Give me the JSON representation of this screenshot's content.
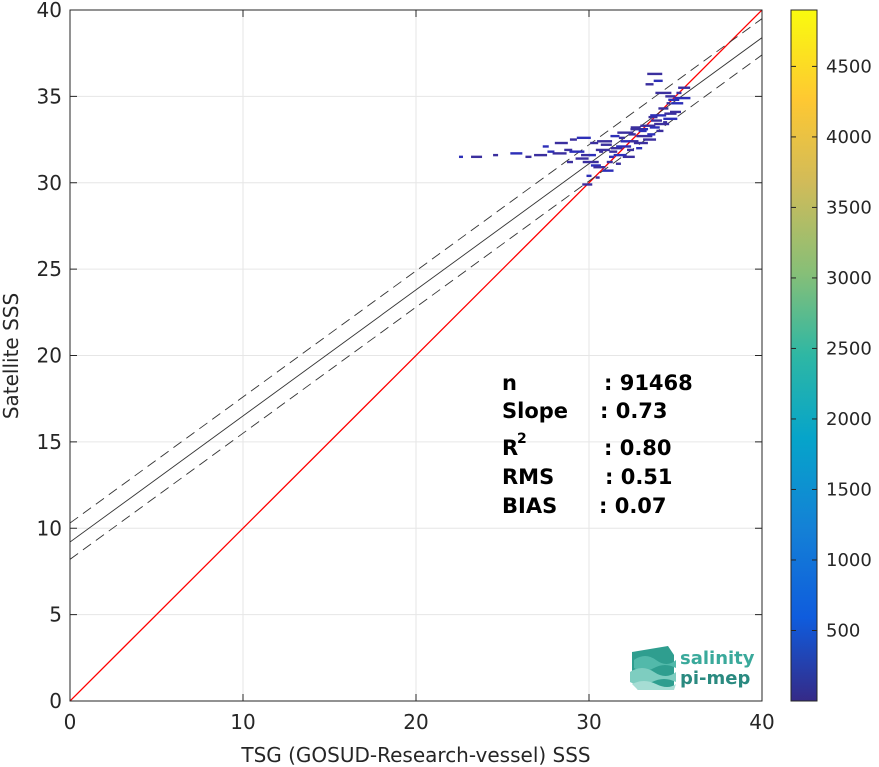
{
  "chart_data": {
    "type": "scatter",
    "subtype": "2d-density-scatter",
    "xlabel": "TSG (GOSUD-Research-vessel) SSS",
    "ylabel": "Satellite SSS",
    "xlim": [
      0,
      40
    ],
    "ylim": [
      0,
      40
    ],
    "xticks": [
      "0",
      "10",
      "20",
      "30",
      "40"
    ],
    "yticks": [
      "0",
      "5",
      "10",
      "15",
      "20",
      "25",
      "30",
      "35",
      "40"
    ],
    "grid": true,
    "colorbar": {
      "colormap": "parula",
      "range": [
        0,
        4900
      ],
      "ticks": [
        "500",
        "1000",
        "1500",
        "2000",
        "2500",
        "3000",
        "3500",
        "4000",
        "4500"
      ],
      "tick_values": [
        500,
        1000,
        1500,
        2000,
        2500,
        3000,
        3500,
        4000,
        4500
      ]
    },
    "series": [
      {
        "kind": "identity-line",
        "color": "#ff0000",
        "x": [
          0,
          40
        ],
        "y": [
          0,
          40
        ]
      },
      {
        "kind": "regression-fit",
        "color": "#333333",
        "x": [
          0,
          40
        ],
        "y": [
          9.2,
          38.4
        ]
      },
      {
        "kind": "fit-upper-bound",
        "color": "#333333",
        "dash": true,
        "x": [
          0,
          40
        ],
        "y": [
          10.3,
          39.5
        ]
      },
      {
        "kind": "fit-lower-bound",
        "color": "#333333",
        "dash": true,
        "x": [
          0,
          40
        ],
        "y": [
          8.2,
          37.4
        ]
      }
    ],
    "density_points": {
      "color_low": "#3b2f9e",
      "color_high": "#2d2fb8",
      "x": [
        22.6,
        23.5,
        24.6,
        25.8,
        26.5,
        27.2,
        27.8,
        28.3,
        28.8,
        29.3,
        29.8,
        30.1,
        30.4,
        30.7,
        31.0,
        31.3,
        31.6,
        31.9,
        32.2,
        32.5,
        32.8,
        33.1,
        33.4,
        33.7,
        34.0,
        34.3,
        34.6,
        34.9,
        35.2,
        35.5,
        27.5,
        28.4,
        29.1,
        29.7,
        30.3,
        30.9,
        31.5,
        32.1,
        32.7,
        33.3,
        33.9,
        34.5,
        35.1,
        28.9,
        29.6,
        30.2,
        30.8,
        31.4,
        32.0,
        32.6,
        33.2,
        33.8,
        34.4,
        35.0,
        30.0,
        30.6,
        31.2,
        31.8,
        32.4,
        33.0,
        33.6,
        34.2,
        34.8,
        35.4,
        29.9,
        30.5,
        31.1,
        31.7,
        32.3,
        32.9,
        33.5,
        34.1,
        34.7,
        33.5,
        33.8,
        34.0,
        34.3,
        34.7
      ],
      "y": [
        31.5,
        31.5,
        31.6,
        31.7,
        31.5,
        31.6,
        31.8,
        31.7,
        31.9,
        31.8,
        31.6,
        31.2,
        31.0,
        31.8,
        32.2,
        31.5,
        32.0,
        32.6,
        32.4,
        32.8,
        33.1,
        33.0,
        33.3,
        33.8,
        33.9,
        34.3,
        34.6,
        34.8,
        35.2,
        35.5,
        32.1,
        32.3,
        32.5,
        32.6,
        32.3,
        32.4,
        32.7,
        32.9,
        33.2,
        33.1,
        33.6,
        34.0,
        34.6,
        31.2,
        31.4,
        31.6,
        31.9,
        31.8,
        32.1,
        32.4,
        32.7,
        33.2,
        33.5,
        34.1,
        30.4,
        30.9,
        31.2,
        31.6,
        31.9,
        32.3,
        32.8,
        33.4,
        34.0,
        34.9,
        29.9,
        30.3,
        30.7,
        31.1,
        31.5,
        32.0,
        32.5,
        33.0,
        33.7,
        35.7,
        36.3,
        35.9,
        35.2,
        35.0
      ]
    },
    "annotation": {
      "n_label": "n",
      "n_value": ": 91468",
      "slope_label": "Slope",
      "slope_value": ": 0.73",
      "r2_label": "R",
      "r2_sup": "2",
      "r2_value": ": 0.80",
      "rms_label": "RMS",
      "rms_value": ": 0.51",
      "bias_label": "BIAS",
      "bias_value": ": 0.07"
    }
  },
  "logo": {
    "line1": "salinity",
    "line2": "pi-mep",
    "color": "#3aa99b"
  }
}
